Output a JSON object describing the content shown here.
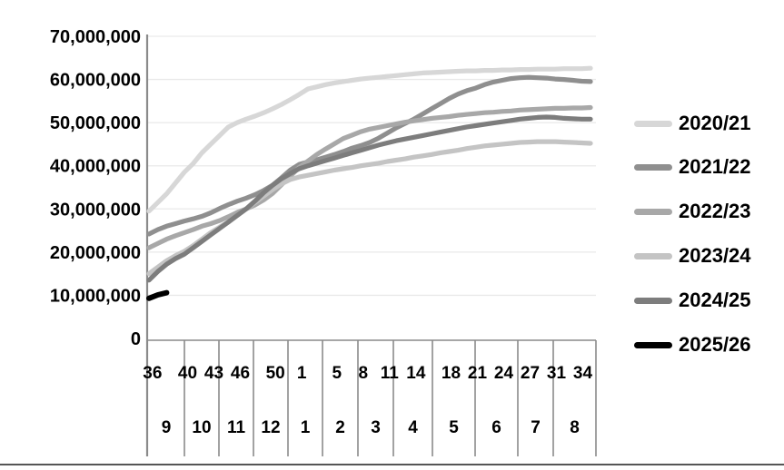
{
  "chart_data": {
    "type": "line",
    "title": "",
    "unit": "million",
    "grid": true,
    "legend_position": "right",
    "y_axis": {
      "min": 0,
      "max": 70,
      "tick_step": 10,
      "tick_labels": [
        "70,000,000",
        "60,000,000",
        "50,000,000",
        "40,000,000",
        "30,000,000",
        "20,000,000",
        "10,000,000",
        "0"
      ]
    },
    "x_axis": {
      "description": "marketing year weeks, September (calendar week 36) through August (calendar week 34)",
      "total_weeks": 51,
      "week_row_labels": [
        "36",
        "40",
        "43",
        "46",
        "50",
        "1",
        "5",
        "8",
        "11",
        "14",
        "18",
        "21",
        "24",
        "27",
        "31",
        "34"
      ],
      "week_label_indices": [
        0,
        4,
        7,
        10,
        14,
        17,
        21,
        24,
        27,
        30,
        34,
        37,
        40,
        43,
        46,
        49
      ],
      "month_row_labels": [
        "9",
        "10",
        "11",
        "12",
        "1",
        "2",
        "3",
        "4",
        "5",
        "6",
        "7",
        "8"
      ]
    },
    "series": [
      {
        "name": "2020/21",
        "color": "#d7d7d7",
        "values": [
          29.5,
          31.5,
          33.5,
          36.0,
          38.5,
          40.5,
          43.0,
          45.0,
          47.0,
          49.0,
          50.0,
          50.8,
          51.5,
          52.3,
          53.2,
          54.2,
          55.3,
          56.5,
          57.8,
          58.3,
          58.8,
          59.2,
          59.5,
          59.8,
          60.1,
          60.3,
          60.5,
          60.7,
          60.9,
          61.1,
          61.3,
          61.5,
          61.6,
          61.7,
          61.8,
          61.9,
          62.0,
          62.0,
          62.1,
          62.1,
          62.2,
          62.2,
          62.3,
          62.3,
          62.4,
          62.4,
          62.4,
          62.5,
          62.5,
          62.5,
          62.6
        ]
      },
      {
        "name": "2021/22",
        "color": "#8f8f8f",
        "values": [
          24.2,
          25.2,
          26.0,
          26.6,
          27.2,
          27.7,
          28.3,
          29.1,
          30.1,
          31.0,
          31.8,
          32.5,
          33.3,
          34.3,
          35.5,
          37.2,
          39.0,
          40.3,
          40.9,
          41.4,
          42.0,
          42.6,
          43.3,
          44.1,
          44.7,
          45.4,
          46.4,
          47.6,
          48.8,
          49.8,
          50.8,
          52.0,
          53.2,
          54.4,
          55.6,
          56.6,
          57.4,
          58.0,
          58.8,
          59.4,
          59.8,
          60.2,
          60.4,
          60.5,
          60.4,
          60.3,
          60.1,
          60.0,
          59.8,
          59.6,
          59.5
        ]
      },
      {
        "name": "2022/23",
        "color": "#a8a8a8",
        "values": [
          21.0,
          22.0,
          23.0,
          23.8,
          24.5,
          25.2,
          26.0,
          26.6,
          27.3,
          28.2,
          29.2,
          30.0,
          30.9,
          32.1,
          33.6,
          35.6,
          37.6,
          39.6,
          41.1,
          42.6,
          43.9,
          45.1,
          46.3,
          47.1,
          47.9,
          48.5,
          48.9,
          49.3,
          49.7,
          50.1,
          50.4,
          50.7,
          51.0,
          51.2,
          51.4,
          51.7,
          51.9,
          52.1,
          52.3,
          52.4,
          52.6,
          52.7,
          52.9,
          53.0,
          53.1,
          53.2,
          53.3,
          53.3,
          53.4,
          53.4,
          53.5
        ]
      },
      {
        "name": "2023/24",
        "color": "#c4c4c4",
        "values": [
          15.0,
          16.5,
          18.0,
          19.2,
          20.2,
          21.5,
          23.0,
          24.5,
          25.8,
          27.0,
          28.5,
          30.0,
          31.5,
          33.0,
          34.5,
          35.8,
          36.8,
          37.4,
          37.8,
          38.2,
          38.6,
          39.0,
          39.3,
          39.6,
          40.0,
          40.3,
          40.6,
          41.0,
          41.3,
          41.6,
          42.0,
          42.3,
          42.6,
          43.0,
          43.3,
          43.6,
          44.0,
          44.3,
          44.6,
          44.8,
          45.0,
          45.2,
          45.4,
          45.5,
          45.6,
          45.6,
          45.6,
          45.5,
          45.4,
          45.3,
          45.2
        ]
      },
      {
        "name": "2024/25",
        "color": "#7d7d7d",
        "values": [
          13.5,
          15.5,
          17.2,
          18.5,
          19.5,
          21.0,
          22.5,
          24.0,
          25.5,
          27.0,
          28.5,
          30.0,
          31.8,
          33.8,
          35.5,
          37.0,
          38.2,
          39.3,
          40.0,
          40.6,
          41.2,
          41.8,
          42.4,
          43.0,
          43.6,
          44.2,
          44.8,
          45.3,
          45.8,
          46.2,
          46.6,
          47.0,
          47.4,
          47.8,
          48.2,
          48.6,
          49.0,
          49.3,
          49.6,
          49.9,
          50.2,
          50.5,
          50.8,
          51.0,
          51.2,
          51.3,
          51.2,
          51.0,
          50.9,
          50.8,
          50.8
        ]
      },
      {
        "name": "2025/26",
        "color": "#000000",
        "values": [
          9.3,
          10.1,
          10.6
        ]
      }
    ],
    "style": {
      "gridline_color": "#e9e9e9",
      "axis_color": "#8a8a8a",
      "text_color": "#000000"
    }
  }
}
